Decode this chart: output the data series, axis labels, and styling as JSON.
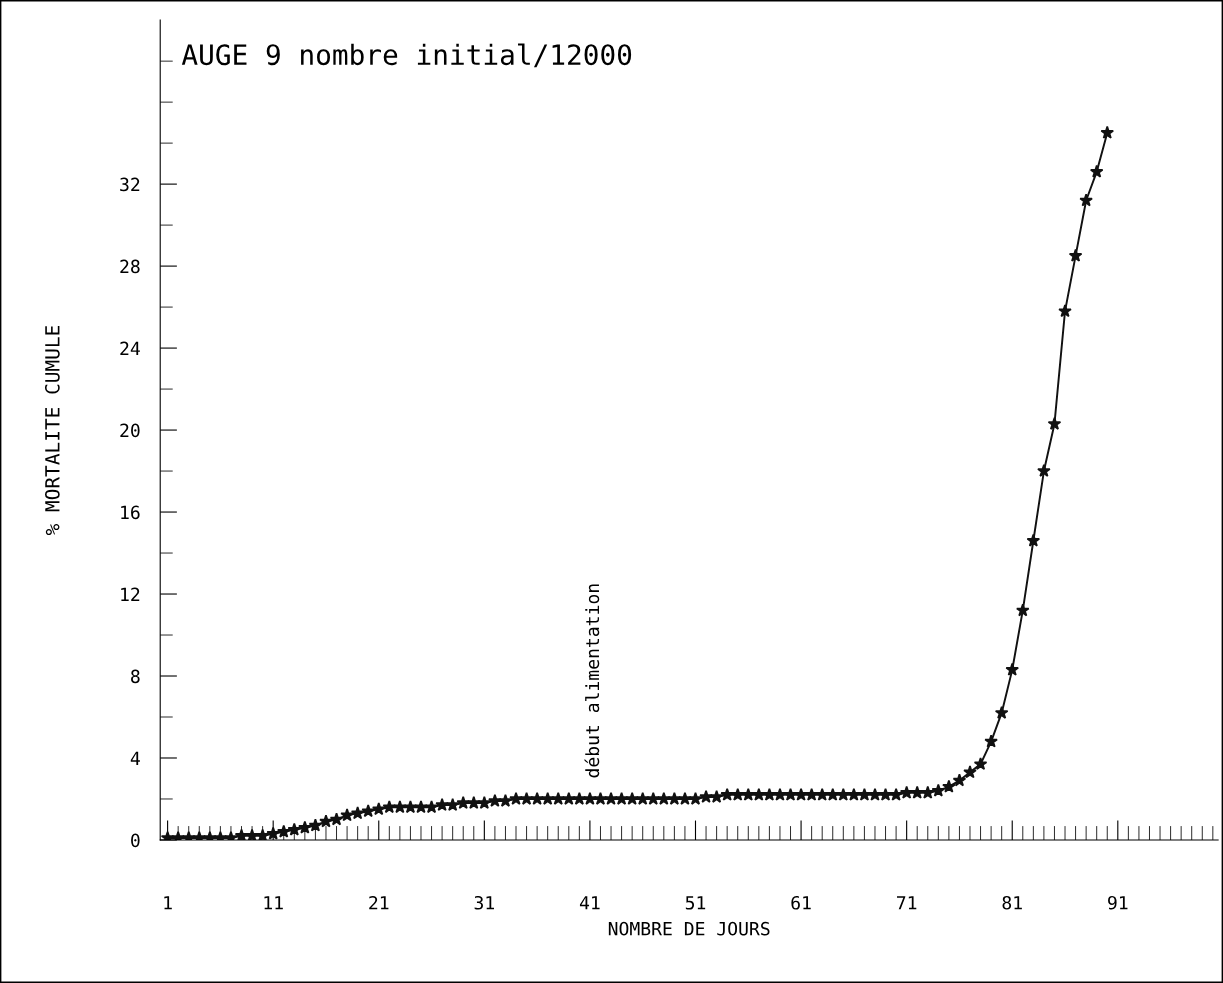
{
  "chart_data": {
    "type": "line",
    "title": "AUGE 9 nombre initial/12000",
    "xlabel": "NOMBRE DE JOURS",
    "ylabel": "% MORTALITE CUMULE",
    "x": [
      1,
      2,
      3,
      4,
      5,
      6,
      7,
      8,
      9,
      10,
      11,
      12,
      13,
      14,
      15,
      16,
      17,
      18,
      19,
      20,
      21,
      22,
      23,
      24,
      25,
      26,
      27,
      28,
      29,
      30,
      31,
      32,
      33,
      34,
      35,
      36,
      37,
      38,
      39,
      40,
      41,
      42,
      43,
      44,
      45,
      46,
      47,
      48,
      49,
      50,
      51,
      52,
      53,
      54,
      55,
      56,
      57,
      58,
      59,
      60,
      61,
      62,
      63,
      64,
      65,
      66,
      67,
      68,
      69,
      70,
      71,
      72,
      73,
      74,
      75,
      76,
      77,
      78,
      79,
      80,
      81,
      82,
      83,
      84,
      85,
      86,
      87,
      88,
      89,
      90
    ],
    "series": [
      {
        "color": "#111111",
        "values": [
          0.1,
          0.1,
          0.1,
          0.1,
          0.1,
          0.1,
          0.1,
          0.2,
          0.2,
          0.2,
          0.3,
          0.4,
          0.5,
          0.6,
          0.7,
          0.9,
          1.0,
          1.2,
          1.3,
          1.4,
          1.5,
          1.6,
          1.6,
          1.6,
          1.6,
          1.6,
          1.7,
          1.7,
          1.8,
          1.8,
          1.8,
          1.9,
          1.9,
          2.0,
          2.0,
          2.0,
          2.0,
          2.0,
          2.0,
          2.0,
          2.0,
          2.0,
          2.0,
          2.0,
          2.0,
          2.0,
          2.0,
          2.0,
          2.0,
          2.0,
          2.0,
          2.1,
          2.1,
          2.2,
          2.2,
          2.2,
          2.2,
          2.2,
          2.2,
          2.2,
          2.2,
          2.2,
          2.2,
          2.2,
          2.2,
          2.2,
          2.2,
          2.2,
          2.2,
          2.2,
          2.3,
          2.3,
          2.3,
          2.4,
          2.6,
          2.9,
          3.3,
          3.7,
          4.8,
          6.2,
          8.3,
          11.2,
          14.6,
          18.0,
          20.3,
          25.8,
          28.5,
          31.2,
          32.6,
          34.5
        ]
      }
    ],
    "marker": "star",
    "line_style": "solid",
    "grid": false,
    "legend": false,
    "xlim": [
      0.3,
      100.5
    ],
    "ylim": [
      0,
      40
    ],
    "xticks": [
      1,
      {
        "value": 2,
        "label": null
      },
      {
        "value": 3,
        "label": null
      },
      {
        "value": 4,
        "label": null
      },
      {
        "value": 5,
        "label": null
      },
      {
        "value": 6,
        "label": null
      },
      {
        "value": 7,
        "label": null
      },
      {
        "value": 8,
        "label": null
      },
      {
        "value": 9,
        "label": null
      },
      {
        "value": 10,
        "label": null
      },
      11,
      {
        "value": 12,
        "label": null
      },
      {
        "value": 13,
        "label": null
      },
      {
        "value": 14,
        "label": null
      },
      {
        "value": 15,
        "label": null
      },
      {
        "value": 16,
        "label": null
      },
      {
        "value": 17,
        "label": null
      },
      {
        "value": 18,
        "label": null
      },
      {
        "value": 19,
        "label": null
      },
      {
        "value": 20,
        "label": null
      },
      21,
      {
        "value": 22,
        "label": null
      },
      {
        "value": 23,
        "label": null
      },
      {
        "value": 24,
        "label": null
      },
      {
        "value": 25,
        "label": null
      },
      {
        "value": 26,
        "label": null
      },
      {
        "value": 27,
        "label": null
      },
      {
        "value": 28,
        "label": null
      },
      {
        "value": 29,
        "label": null
      },
      {
        "value": 30,
        "label": null
      },
      31,
      {
        "value": 32,
        "label": null
      },
      {
        "value": 33,
        "label": null
      },
      {
        "value": 34,
        "label": null
      },
      {
        "value": 35,
        "label": null
      },
      {
        "value": 36,
        "label": null
      },
      {
        "value": 37,
        "label": null
      },
      {
        "value": 38,
        "label": null
      },
      {
        "value": 39,
        "label": null
      },
      {
        "value": 40,
        "label": null
      },
      41,
      {
        "value": 42,
        "label": null
      },
      {
        "value": 43,
        "label": null
      },
      {
        "value": 44,
        "label": null
      },
      {
        "value": 45,
        "label": null
      },
      {
        "value": 46,
        "label": null
      },
      {
        "value": 47,
        "label": null
      },
      {
        "value": 48,
        "label": null
      },
      {
        "value": 49,
        "label": null
      },
      {
        "value": 50,
        "label": null
      },
      51,
      {
        "value": 52,
        "label": null
      },
      {
        "value": 53,
        "label": null
      },
      {
        "value": 54,
        "label": null
      },
      {
        "value": 55,
        "label": null
      },
      {
        "value": 56,
        "label": null
      },
      {
        "value": 57,
        "label": null
      },
      {
        "value": 58,
        "label": null
      },
      {
        "value": 59,
        "label": null
      },
      {
        "value": 60,
        "label": null
      },
      61,
      {
        "value": 62,
        "label": null
      },
      {
        "value": 63,
        "label": null
      },
      {
        "value": 64,
        "label": null
      },
      {
        "value": 65,
        "label": null
      },
      {
        "value": 66,
        "label": null
      },
      {
        "value": 67,
        "label": null
      },
      {
        "value": 68,
        "label": null
      },
      {
        "value": 69,
        "label": null
      },
      {
        "value": 70,
        "label": null
      },
      71,
      {
        "value": 72,
        "label": null
      },
      {
        "value": 73,
        "label": null
      },
      {
        "value": 74,
        "label": null
      },
      {
        "value": 75,
        "label": null
      },
      {
        "value": 76,
        "label": null
      },
      {
        "value": 77,
        "label": null
      },
      {
        "value": 78,
        "label": null
      },
      {
        "value": 79,
        "label": null
      },
      {
        "value": 80,
        "label": null
      },
      81,
      {
        "value": 82,
        "label": null
      },
      {
        "value": 83,
        "label": null
      },
      {
        "value": 84,
        "label": null
      },
      {
        "value": 85,
        "label": null
      },
      {
        "value": 86,
        "label": null
      },
      {
        "value": 87,
        "label": null
      },
      {
        "value": 88,
        "label": null
      },
      {
        "value": 89,
        "label": null
      },
      {
        "value": 90,
        "label": null
      },
      91,
      {
        "value": 92,
        "label": null
      },
      {
        "value": 93,
        "label": null
      },
      {
        "value": 94,
        "label": null
      },
      {
        "value": 95,
        "label": null
      },
      {
        "value": 96,
        "label": null
      },
      {
        "value": 97,
        "label": null
      },
      {
        "value": 98,
        "label": null
      },
      {
        "value": 99,
        "label": null
      },
      {
        "value": 100,
        "label": null
      }
    ],
    "yticks": [
      0,
      {
        "value": 2,
        "label": null
      },
      4,
      {
        "value": 6,
        "label": null
      },
      8,
      {
        "value": 10,
        "label": null
      },
      12,
      {
        "value": 14,
        "label": null
      },
      16,
      {
        "value": 18,
        "label": null
      },
      20,
      {
        "value": 22,
        "label": null
      },
      24,
      {
        "value": 26,
        "label": null
      },
      28,
      {
        "value": 30,
        "label": null
      },
      32,
      {
        "value": 34,
        "label": null
      },
      {
        "value": 36,
        "label": null
      },
      {
        "value": 38,
        "label": null
      }
    ],
    "annotations": [
      "début alimentation"
    ]
  }
}
